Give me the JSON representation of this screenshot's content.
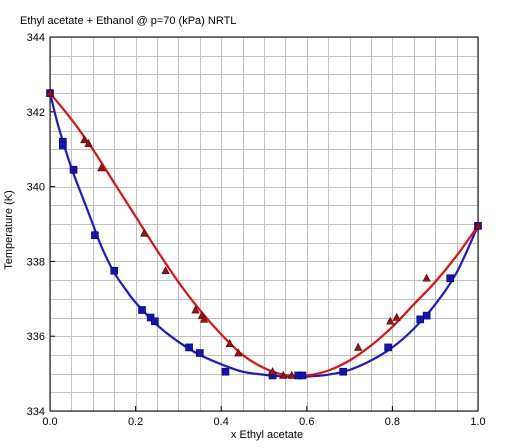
{
  "chart_data": {
    "type": "scatter",
    "title": "Ethyl acetate + Ethanol @ p=70 (kPa) NRTL",
    "xlabel": "x Ethyl acetate",
    "ylabel": "Temperature (K)",
    "xlim": [
      0.0,
      1.0
    ],
    "ylim": [
      334,
      344
    ],
    "x_ticks": [
      "0.0",
      "0.2",
      "0.4",
      "0.6",
      "0.8",
      "1.0"
    ],
    "y_ticks": [
      "334",
      "336",
      "338",
      "340",
      "342",
      "344"
    ],
    "x_minor_step": 0.05,
    "y_minor_step": 0.5,
    "grid": true,
    "legend": "none",
    "colors": {
      "liquid_curve": "#1a1acc",
      "vapor_curve": "#e01010",
      "square_marker": "#1414b4",
      "triangle_marker": "#a01010",
      "grid": "#c0c0c0"
    },
    "series": [
      {
        "kind": "curve",
        "color": "#1a1acc",
        "points": [
          [
            0.0,
            342.5
          ],
          [
            0.02,
            341.6
          ],
          [
            0.05,
            340.5
          ],
          [
            0.08,
            339.6
          ],
          [
            0.1,
            339.0
          ],
          [
            0.12,
            338.4
          ],
          [
            0.15,
            337.7
          ],
          [
            0.18,
            337.2
          ],
          [
            0.2,
            336.9
          ],
          [
            0.25,
            336.3
          ],
          [
            0.3,
            335.85
          ],
          [
            0.35,
            335.5
          ],
          [
            0.4,
            335.25
          ],
          [
            0.45,
            335.05
          ],
          [
            0.5,
            334.97
          ],
          [
            0.55,
            334.92
          ],
          [
            0.6,
            334.92
          ],
          [
            0.65,
            334.97
          ],
          [
            0.7,
            335.1
          ],
          [
            0.75,
            335.35
          ],
          [
            0.8,
            335.7
          ],
          [
            0.85,
            336.2
          ],
          [
            0.9,
            336.85
          ],
          [
            0.95,
            337.7
          ],
          [
            1.0,
            338.95
          ]
        ]
      },
      {
        "kind": "curve",
        "color": "#e01010",
        "points": [
          [
            0.0,
            342.5
          ],
          [
            0.05,
            341.8
          ],
          [
            0.1,
            341.0
          ],
          [
            0.15,
            340.1
          ],
          [
            0.2,
            339.2
          ],
          [
            0.25,
            338.3
          ],
          [
            0.3,
            337.45
          ],
          [
            0.35,
            336.7
          ],
          [
            0.4,
            336.05
          ],
          [
            0.45,
            335.5
          ],
          [
            0.5,
            335.15
          ],
          [
            0.55,
            334.96
          ],
          [
            0.6,
            334.95
          ],
          [
            0.65,
            335.08
          ],
          [
            0.7,
            335.35
          ],
          [
            0.75,
            335.75
          ],
          [
            0.8,
            336.25
          ],
          [
            0.85,
            336.85
          ],
          [
            0.9,
            337.45
          ],
          [
            0.95,
            338.15
          ],
          [
            1.0,
            338.95
          ]
        ]
      },
      {
        "kind": "markers",
        "marker": "square",
        "color": "#1414b4",
        "points": [
          [
            0.0,
            342.5
          ],
          [
            0.03,
            341.2
          ],
          [
            0.03,
            341.1
          ],
          [
            0.055,
            340.45
          ],
          [
            0.105,
            338.7
          ],
          [
            0.15,
            337.75
          ],
          [
            0.215,
            336.7
          ],
          [
            0.235,
            336.5
          ],
          [
            0.245,
            336.4
          ],
          [
            0.325,
            335.7
          ],
          [
            0.35,
            335.55
          ],
          [
            0.41,
            335.05
          ],
          [
            0.52,
            334.95
          ],
          [
            0.58,
            334.95
          ],
          [
            0.59,
            334.95
          ],
          [
            0.685,
            335.05
          ],
          [
            0.79,
            335.7
          ],
          [
            0.865,
            336.45
          ],
          [
            0.88,
            336.55
          ],
          [
            0.935,
            337.55
          ],
          [
            1.0,
            338.95
          ]
        ]
      },
      {
        "kind": "markers",
        "marker": "triangle",
        "color": "#a01010",
        "points": [
          [
            0.0,
            342.5
          ],
          [
            0.08,
            341.25
          ],
          [
            0.09,
            341.15
          ],
          [
            0.12,
            340.5
          ],
          [
            0.22,
            338.75
          ],
          [
            0.27,
            337.75
          ],
          [
            0.34,
            336.7
          ],
          [
            0.355,
            336.55
          ],
          [
            0.36,
            336.45
          ],
          [
            0.42,
            335.8
          ],
          [
            0.44,
            335.55
          ],
          [
            0.52,
            335.05
          ],
          [
            0.545,
            334.95
          ],
          [
            0.565,
            334.95
          ],
          [
            0.72,
            335.7
          ],
          [
            0.795,
            336.4
          ],
          [
            0.81,
            336.5
          ],
          [
            0.88,
            337.55
          ],
          [
            1.0,
            338.95
          ]
        ]
      }
    ]
  }
}
